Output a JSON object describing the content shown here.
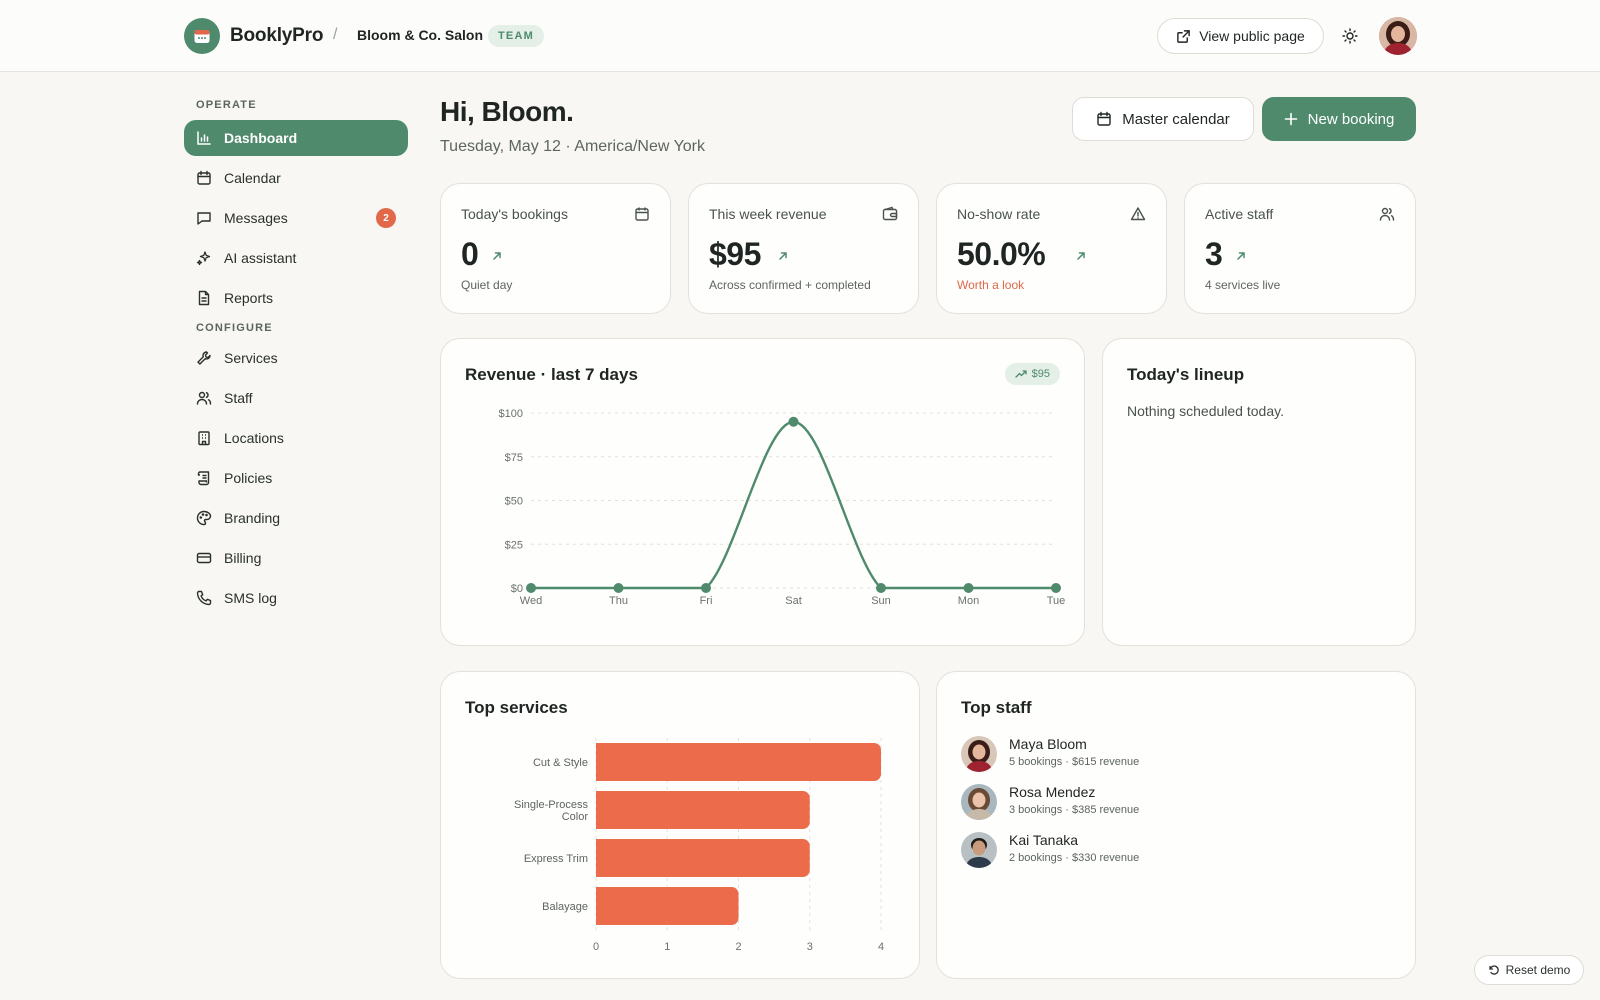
{
  "header": {
    "brand": "BooklyPro",
    "separator": "/",
    "org_name": "Bloom & Co. Salon",
    "org_badge": "TEAM",
    "view_public_label": "View public page"
  },
  "sidebar": {
    "sections": [
      {
        "heading": "OPERATE"
      },
      {
        "heading": "CONFIGURE"
      }
    ],
    "items": [
      {
        "label": "Dashboard",
        "icon": "bar-chart-icon",
        "active": true
      },
      {
        "label": "Calendar",
        "icon": "calendar-icon"
      },
      {
        "label": "Messages",
        "icon": "message-icon",
        "badge": "2"
      },
      {
        "label": "AI assistant",
        "icon": "sparkles-icon"
      },
      {
        "label": "Reports",
        "icon": "file-icon"
      },
      {
        "label": "Services",
        "icon": "wrench-icon"
      },
      {
        "label": "Staff",
        "icon": "users-icon"
      },
      {
        "label": "Locations",
        "icon": "building-icon"
      },
      {
        "label": "Policies",
        "icon": "scroll-icon"
      },
      {
        "label": "Branding",
        "icon": "palette-icon"
      },
      {
        "label": "Billing",
        "icon": "credit-card-icon"
      },
      {
        "label": "SMS log",
        "icon": "phone-icon"
      }
    ]
  },
  "main": {
    "greeting": "Hi, Bloom.",
    "date_line": "Tuesday, May 12 · America/New York",
    "master_calendar_label": "Master calendar",
    "new_booking_label": "New booking"
  },
  "stats": [
    {
      "label": "Today's bookings",
      "value": "0",
      "sub": "Quiet day",
      "icon": "calendar-icon",
      "tone": "normal"
    },
    {
      "label": "This week revenue",
      "value": "$95",
      "sub": "Across confirmed + completed",
      "icon": "wallet-icon",
      "tone": "normal"
    },
    {
      "label": "No-show rate",
      "value": "50.0%",
      "sub": "Worth a look",
      "icon": "alert-triangle-icon",
      "tone": "warn"
    },
    {
      "label": "Active staff",
      "value": "3",
      "sub": "4 services live",
      "icon": "users-icon",
      "tone": "normal"
    }
  ],
  "revenue_card": {
    "title": "Revenue · last 7 days",
    "badge": "$95"
  },
  "lineup": {
    "title": "Today's lineup",
    "empty_text": "Nothing scheduled today."
  },
  "top_services": {
    "title": "Top services"
  },
  "top_staff": {
    "title": "Top staff",
    "people": [
      {
        "name": "Maya Bloom",
        "meta": "5 bookings · $615 revenue",
        "hair": "#3a1d16",
        "skin": "#e4b79c",
        "shirt": "#9e2230"
      },
      {
        "name": "Rosa Mendez",
        "meta": "3 bookings · $385 revenue",
        "hair": "#6b4a35",
        "skin": "#e9c4ab",
        "shirt": "#c7b9a8"
      },
      {
        "name": "Kai Tanaka",
        "meta": "2 bookings · $330 revenue",
        "hair": "#1e1a18",
        "skin": "#c99a7c",
        "shirt": "#2e3b4a"
      }
    ]
  },
  "reset_label": "Reset demo",
  "colors": {
    "accent": "#4f8a6c",
    "warn": "#e2684a",
    "bar": "#eb6b4b"
  },
  "chart_data": [
    {
      "type": "line",
      "categories": [
        "Wed",
        "Thu",
        "Fri",
        "Sat",
        "Sun",
        "Mon",
        "Tue"
      ],
      "series": [
        {
          "values": [
            0,
            0,
            0,
            95,
            0,
            0,
            0
          ]
        }
      ],
      "y_ticks": [
        "$0",
        "$25",
        "$50",
        "$75",
        "$100"
      ],
      "ylim": [
        0,
        100
      ],
      "grid": true
    },
    {
      "type": "bar",
      "orientation": "horizontal",
      "categories": [
        "Cut & Style",
        "Single-Process Color",
        "Express Trim",
        "Balayage"
      ],
      "values": [
        4,
        3,
        3,
        2
      ],
      "x_ticks": [
        "0",
        "1",
        "2",
        "3",
        "4"
      ],
      "xlim": [
        0,
        4
      ],
      "grid": true
    }
  ]
}
